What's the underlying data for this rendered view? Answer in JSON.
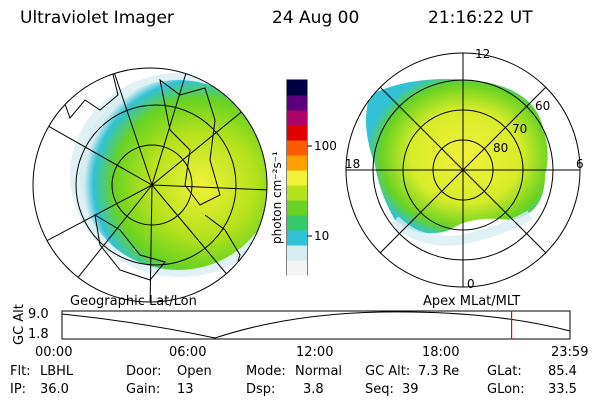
{
  "header": {
    "instrument": "Ultraviolet Imager",
    "date": "24 Aug 00",
    "time": "21:16:22 UT"
  },
  "colorbar": {
    "unit_label": "photon cm⁻²s⁻¹",
    "tick_100": "100",
    "tick_10": "10",
    "colors": [
      "#f3f3f3",
      "#d7edf1",
      "#31c2d6",
      "#35c96a",
      "#69d222",
      "#b6e21c",
      "#f1f13a",
      "#ffa000",
      "#ff5a00",
      "#e00000",
      "#b0006a",
      "#5a007a",
      "#000044"
    ]
  },
  "left_map": {
    "caption": "Geographic Lat/Lon"
  },
  "right_map": {
    "caption": "Apex MLat/MLT",
    "mlt_labels": {
      "top": "12",
      "right": "6",
      "bottom": "0",
      "left": "18"
    },
    "lat_labels": [
      "80",
      "70",
      "60"
    ]
  },
  "altitude_plot": {
    "ylabel": "GC Alt",
    "yticks": [
      "9.0",
      "1.8"
    ],
    "xticks": [
      "00:00",
      "06:00",
      "12:00",
      "18:00",
      "23:59"
    ],
    "marker_time_fraction": 0.885,
    "marker_color": "#ff0000"
  },
  "footer": {
    "flt_label": "Flt:",
    "flt_value": "LBHL",
    "ip_label": "IP:",
    "ip_value": "36.0",
    "door_label": "Door:",
    "door_value": "Open",
    "gain_label": "Gain:",
    "gain_value": "13",
    "mode_label": "Mode:",
    "mode_value": "Normal",
    "dsp_label": "Dsp:",
    "dsp_value": "3.8",
    "gcalt_label": "GC Alt:",
    "gcalt_value": "7.3 Re",
    "seq_label": "Seq:",
    "seq_value": "39",
    "glat_label": "GLat:",
    "glat_value": "85.4",
    "glon_label": "GLon:",
    "glon_value": "33.5"
  }
}
